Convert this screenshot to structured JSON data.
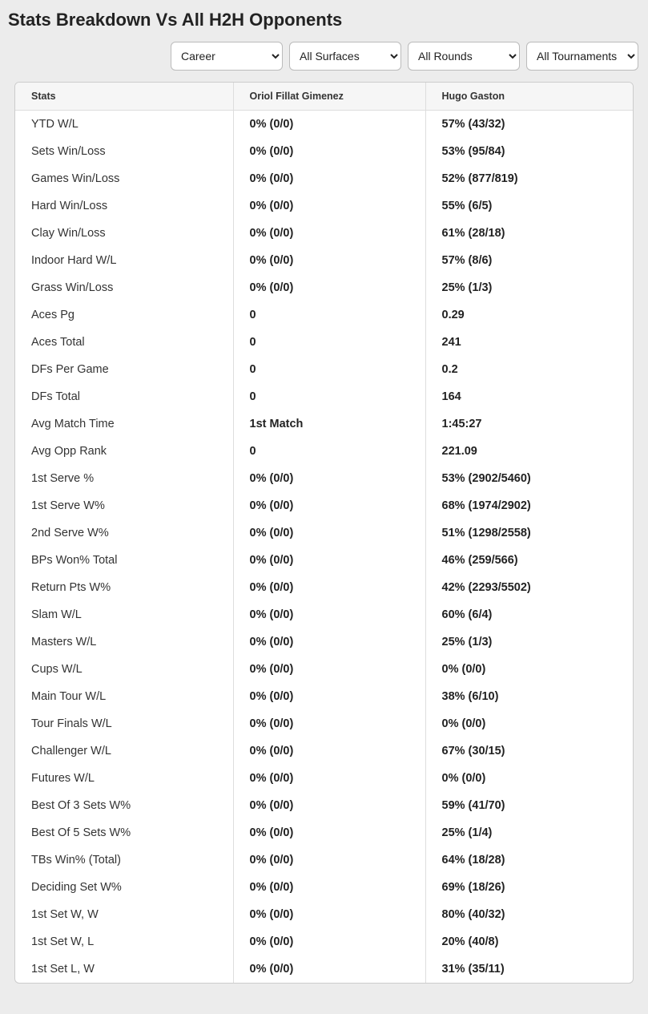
{
  "title": "Stats Breakdown Vs All H2H Opponents",
  "filters": {
    "period": "Career",
    "surface": "All Surfaces",
    "round": "All Rounds",
    "tournament": "All Tournaments"
  },
  "table": {
    "columns": [
      "Stats",
      "Oriol Fillat Gimenez",
      "Hugo Gaston"
    ],
    "rows": [
      [
        "YTD W/L",
        "0% (0/0)",
        "57% (43/32)"
      ],
      [
        "Sets Win/Loss",
        "0% (0/0)",
        "53% (95/84)"
      ],
      [
        "Games Win/Loss",
        "0% (0/0)",
        "52% (877/819)"
      ],
      [
        "Hard Win/Loss",
        "0% (0/0)",
        "55% (6/5)"
      ],
      [
        "Clay Win/Loss",
        "0% (0/0)",
        "61% (28/18)"
      ],
      [
        "Indoor Hard W/L",
        "0% (0/0)",
        "57% (8/6)"
      ],
      [
        "Grass Win/Loss",
        "0% (0/0)",
        "25% (1/3)"
      ],
      [
        "Aces Pg",
        "0",
        "0.29"
      ],
      [
        "Aces Total",
        "0",
        "241"
      ],
      [
        "DFs Per Game",
        "0",
        "0.2"
      ],
      [
        "DFs Total",
        "0",
        "164"
      ],
      [
        "Avg Match Time",
        "1st Match",
        "1:45:27"
      ],
      [
        "Avg Opp Rank",
        "0",
        "221.09"
      ],
      [
        "1st Serve %",
        "0% (0/0)",
        "53% (2902/5460)"
      ],
      [
        "1st Serve W%",
        "0% (0/0)",
        "68% (1974/2902)"
      ],
      [
        "2nd Serve W%",
        "0% (0/0)",
        "51% (1298/2558)"
      ],
      [
        "BPs Won% Total",
        "0% (0/0)",
        "46% (259/566)"
      ],
      [
        "Return Pts W%",
        "0% (0/0)",
        "42% (2293/5502)"
      ],
      [
        "Slam W/L",
        "0% (0/0)",
        "60% (6/4)"
      ],
      [
        "Masters W/L",
        "0% (0/0)",
        "25% (1/3)"
      ],
      [
        "Cups W/L",
        "0% (0/0)",
        "0% (0/0)"
      ],
      [
        "Main Tour W/L",
        "0% (0/0)",
        "38% (6/10)"
      ],
      [
        "Tour Finals W/L",
        "0% (0/0)",
        "0% (0/0)"
      ],
      [
        "Challenger W/L",
        "0% (0/0)",
        "67% (30/15)"
      ],
      [
        "Futures W/L",
        "0% (0/0)",
        "0% (0/0)"
      ],
      [
        "Best Of 3 Sets W%",
        "0% (0/0)",
        "59% (41/70)"
      ],
      [
        "Best Of 5 Sets W%",
        "0% (0/0)",
        "25% (1/4)"
      ],
      [
        "TBs Win% (Total)",
        "0% (0/0)",
        "64% (18/28)"
      ],
      [
        "Deciding Set W%",
        "0% (0/0)",
        "69% (18/26)"
      ],
      [
        "1st Set W, W",
        "0% (0/0)",
        "80% (40/32)"
      ],
      [
        "1st Set W, L",
        "0% (0/0)",
        "20% (40/8)"
      ],
      [
        "1st Set L, W",
        "0% (0/0)",
        "31% (35/11)"
      ]
    ]
  }
}
